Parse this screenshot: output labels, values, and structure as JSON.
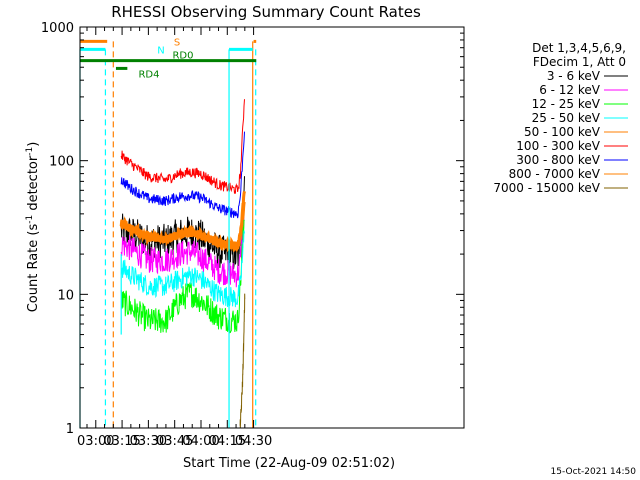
{
  "chart_data": {
    "type": "line",
    "title": "RHESSI Observing Summary Count Rates",
    "xlabel": "Start Time (22-Aug-09 02:51:02)",
    "ylabel_main": "Count Rate (s",
    "ylabel_sup1": "-1",
    "ylabel_mid": " detector",
    "ylabel_sup2": "-1",
    "ylabel_end": ")",
    "yscale": "log",
    "ylim": [
      1,
      1000
    ],
    "xlim_min": [
      171,
      390
    ],
    "yticks": [
      {
        "v": 1,
        "label": "1"
      },
      {
        "v": 10,
        "label": "10"
      },
      {
        "v": 100,
        "label": "100"
      },
      {
        "v": 1000,
        "label": "1000"
      }
    ],
    "xticks": [
      {
        "v": 180,
        "label": "03:00"
      },
      {
        "v": 195,
        "label": "03:15"
      },
      {
        "v": 210,
        "label": "03:30"
      },
      {
        "v": 225,
        "label": "03:45"
      },
      {
        "v": 240,
        "label": "04:00"
      },
      {
        "v": 255,
        "label": "04:15"
      },
      {
        "v": 270,
        "label": "04:30"
      }
    ],
    "legend_header": [
      "Det 1,3,4,5,6,9,",
      "FDecim 1, Att 0"
    ],
    "series": [
      {
        "name": "3 - 6 keV",
        "color": "#000000",
        "values": [
          [
            194.5,
            30
          ],
          [
            200,
            29
          ],
          [
            210,
            25
          ],
          [
            220,
            25
          ],
          [
            228,
            28
          ],
          [
            234,
            29
          ],
          [
            240,
            27
          ],
          [
            250,
            21
          ],
          [
            261,
            19
          ],
          [
            262.5,
            24
          ],
          [
            264.8,
            60
          ]
        ],
        "noise": 0.13
      },
      {
        "name": "6 - 12 keV",
        "color": "#ff00ff",
        "values": [
          [
            194.5,
            24
          ],
          [
            200,
            22
          ],
          [
            210,
            18
          ],
          [
            220,
            18
          ],
          [
            228,
            20
          ],
          [
            234,
            21
          ],
          [
            240,
            19
          ],
          [
            250,
            15
          ],
          [
            261,
            14
          ],
          [
            262.5,
            18
          ],
          [
            264.8,
            45
          ]
        ],
        "noise": 0.1
      },
      {
        "name": "12 - 25 keV",
        "color": "#00ff00",
        "values": [
          [
            194.5,
            9
          ],
          [
            200,
            8
          ],
          [
            210,
            6.3
          ],
          [
            220,
            6.3
          ],
          [
            228,
            9
          ],
          [
            234,
            10.3
          ],
          [
            240,
            9
          ],
          [
            250,
            6.8
          ],
          [
            261,
            6.3
          ],
          [
            262.5,
            12
          ],
          [
            264.8,
            40
          ]
        ],
        "noise": 0.1
      },
      {
        "name": "25 - 50 keV",
        "color": "#00ffff",
        "values": [
          [
            194.5,
            16
          ],
          [
            200,
            14
          ],
          [
            210,
            11.5
          ],
          [
            220,
            11.5
          ],
          [
            228,
            13
          ],
          [
            234,
            14
          ],
          [
            240,
            13
          ],
          [
            250,
            10
          ],
          [
            261,
            9.3
          ],
          [
            262.5,
            12
          ],
          [
            264.8,
            30
          ]
        ],
        "noise": 0.08
      },
      {
        "name": "50 - 100 keV",
        "color": "#ff7f00",
        "values": [
          [
            194.5,
            34
          ],
          [
            200,
            31
          ],
          [
            210,
            27
          ],
          [
            220,
            26
          ],
          [
            228,
            28
          ],
          [
            234,
            29.5
          ],
          [
            240,
            28
          ],
          [
            250,
            24
          ],
          [
            261,
            23
          ],
          [
            262.5,
            28
          ],
          [
            264.8,
            50
          ]
        ],
        "noise": 0.03
      },
      {
        "name": "100 - 300 keV",
        "color": "#ff0000",
        "values": [
          [
            194.5,
            110
          ],
          [
            200,
            95
          ],
          [
            210,
            76
          ],
          [
            220,
            72
          ],
          [
            228,
            80
          ],
          [
            234,
            82
          ],
          [
            240,
            80
          ],
          [
            250,
            66
          ],
          [
            261,
            60
          ],
          [
            262.5,
            80
          ],
          [
            264.8,
            300
          ]
        ],
        "noise": 0.04
      },
      {
        "name": "300 - 800 keV",
        "color": "#0000ff",
        "values": [
          [
            194.5,
            72
          ],
          [
            200,
            62
          ],
          [
            210,
            52
          ],
          [
            220,
            50
          ],
          [
            228,
            54
          ],
          [
            234,
            55
          ],
          [
            240,
            53
          ],
          [
            250,
            44
          ],
          [
            261,
            40
          ],
          [
            262.5,
            55
          ],
          [
            264.8,
            170
          ]
        ],
        "noise": 0.04
      },
      {
        "name": "800 - 7000 keV",
        "color": "#ff8000",
        "values": [
          [
            194.5,
            34
          ],
          [
            200,
            31
          ],
          [
            210,
            27
          ],
          [
            220,
            26
          ],
          [
            228,
            28
          ],
          [
            234,
            29.5
          ],
          [
            240,
            28
          ],
          [
            250,
            24
          ],
          [
            261,
            23
          ],
          [
            262.5,
            28
          ],
          [
            264.8,
            60
          ]
        ],
        "noise": 0.03
      },
      {
        "name": "7000 - 15000 keV",
        "color": "#806000",
        "values": [
          [
            262.3,
            1
          ],
          [
            263,
            1.4
          ],
          [
            263.7,
            2.2
          ],
          [
            264.5,
            5
          ],
          [
            265,
            10
          ]
        ],
        "noise": 0.05
      }
    ],
    "flags": [
      {
        "label": "S",
        "color": "#ff8000",
        "level": 780,
        "segments": [
          [
            171,
            186.5
          ],
          [
            270,
            271.5
          ]
        ]
      },
      {
        "label": "N",
        "color": "#00ffff",
        "level": 680,
        "segments": [
          [
            171,
            185.5
          ],
          [
            256,
            269.5
          ]
        ]
      },
      {
        "label": "RD0",
        "color": "#008000",
        "level": 560,
        "segments": [
          [
            171,
            271.5
          ]
        ]
      },
      {
        "label": "RD4",
        "color": "#008000",
        "level": 490,
        "segments": [
          [
            191.5,
            198
          ]
        ]
      }
    ],
    "vlines": [
      {
        "x": 171,
        "color": "#00ffff",
        "style": "solid",
        "from": 1,
        "to": 680
      },
      {
        "x": 185.5,
        "color": "#00ffff",
        "style": "dashed",
        "from": 1,
        "to": 680
      },
      {
        "x": 190,
        "color": "#ff8000",
        "style": "dashed",
        "from": 1,
        "to": 780
      },
      {
        "x": 194.5,
        "color": "#00ffff",
        "style": "solid",
        "from": 5,
        "to": 20
      },
      {
        "x": 256,
        "color": "#00ffff",
        "style": "solid",
        "from": 1,
        "to": 680
      },
      {
        "x": 269.5,
        "color": "#ff8000",
        "style": "solid",
        "from": 1,
        "to": 780
      },
      {
        "x": 271.2,
        "color": "#00ffff",
        "style": "dashed",
        "from": 1,
        "to": 680
      }
    ],
    "timestamp": "15-Oct-2021 14:50",
    "grid": false,
    "legend_position": "right"
  }
}
